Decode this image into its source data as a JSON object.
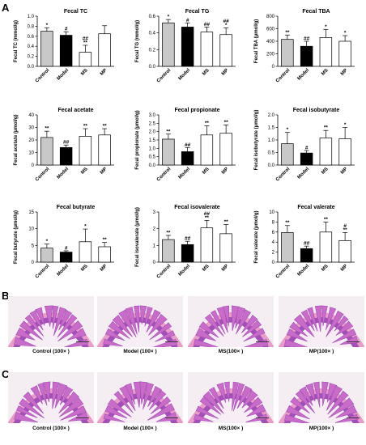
{
  "panel_labels": {
    "a": "A",
    "b": "B",
    "c": "C"
  },
  "chart_data": [
    {
      "type": "bar",
      "title": "Fecal TC",
      "ylabel": "Fecal TC (mmol/g)",
      "categories": [
        "Control",
        "Model",
        "MS",
        "MP"
      ],
      "values": [
        0.7,
        0.62,
        0.28,
        0.65
      ],
      "errors": [
        0.07,
        0.07,
        0.14,
        0.16
      ],
      "ylim": [
        0,
        1.0
      ],
      "yticks": [
        0,
        0.2,
        0.4,
        0.6,
        0.8,
        1.0
      ],
      "tick_labels": [
        "0.0",
        "0.2",
        "0.4",
        "0.6",
        "0.8",
        "1.0"
      ],
      "sig_labels": [
        [
          "*"
        ],
        [
          "#"
        ],
        [
          "##",
          "**"
        ],
        []
      ],
      "colors": [
        "#c8c8c8",
        "#000000",
        "#ffffff",
        "#ffffff"
      ]
    },
    {
      "type": "bar",
      "title": "Fecal TG",
      "ylabel": "Fecal TG (mmol/g)",
      "categories": [
        "Control",
        "Model",
        "MS",
        "MP"
      ],
      "values": [
        0.52,
        0.47,
        0.41,
        0.38
      ],
      "errors": [
        0.04,
        0.05,
        0.06,
        0.08
      ],
      "ylim": [
        0,
        0.6
      ],
      "yticks": [
        0,
        0.2,
        0.4,
        0.6
      ],
      "tick_labels": [
        "0.0",
        "0.2",
        "0.4",
        "0.6"
      ],
      "sig_labels": [
        [
          "*"
        ],
        [
          "#"
        ],
        [
          "##"
        ],
        [
          "##",
          "*"
        ]
      ],
      "colors": [
        "#c8c8c8",
        "#000000",
        "#ffffff",
        "#ffffff"
      ]
    },
    {
      "type": "bar",
      "title": "Fecal TBA",
      "ylabel": "Fecal TBA (μmol/g)",
      "categories": [
        "Control",
        "Model",
        "MS",
        "MP"
      ],
      "values": [
        430,
        320,
        460,
        400
      ],
      "errors": [
        70,
        80,
        130,
        90
      ],
      "ylim": [
        0,
        800
      ],
      "yticks": [
        0,
        200,
        400,
        600,
        800
      ],
      "tick_labels": [
        "0",
        "200",
        "400",
        "600",
        "800"
      ],
      "sig_labels": [
        [
          "**"
        ],
        [
          "##"
        ],
        [
          "*"
        ],
        [
          "*"
        ]
      ],
      "colors": [
        "#c8c8c8",
        "#000000",
        "#ffffff",
        "#ffffff"
      ]
    },
    {
      "type": "bar",
      "title": "Fecal acetate",
      "ylabel": "Fecal acetate (μmol/g)",
      "categories": [
        "Control",
        "Model",
        "MS",
        "MP"
      ],
      "values": [
        22,
        14,
        23,
        24
      ],
      "errors": [
        5,
        2,
        6,
        5
      ],
      "ylim": [
        0,
        40
      ],
      "yticks": [
        0,
        10,
        20,
        30,
        40
      ],
      "tick_labels": [
        "0",
        "10",
        "20",
        "30",
        "40"
      ],
      "sig_labels": [
        [
          "**"
        ],
        [
          "##"
        ],
        [
          "**"
        ],
        [
          "**"
        ]
      ],
      "colors": [
        "#c8c8c8",
        "#000000",
        "#ffffff",
        "#ffffff"
      ]
    },
    {
      "type": "bar",
      "title": "Fecal propionate",
      "ylabel": "Fecal propionate (μmol/g)",
      "categories": [
        "Control",
        "Model",
        "MS",
        "MP"
      ],
      "values": [
        1.55,
        0.8,
        1.8,
        1.9
      ],
      "errors": [
        0.3,
        0.25,
        0.55,
        0.5
      ],
      "ylim": [
        0,
        3.0
      ],
      "yticks": [
        0,
        0.5,
        1.0,
        1.5,
        2.0,
        2.5,
        3.0
      ],
      "tick_labels": [
        "0.0",
        "0.5",
        "1.0",
        "1.5",
        "2.0",
        "2.5",
        "3.0"
      ],
      "sig_labels": [
        [
          "**"
        ],
        [
          "##"
        ],
        [
          "**"
        ],
        [
          "**"
        ]
      ],
      "colors": [
        "#c8c8c8",
        "#000000",
        "#ffffff",
        "#ffffff"
      ]
    },
    {
      "type": "bar",
      "title": "Fecal isobutyrate",
      "ylabel": "Fecal isobutyrate (μmol/g)",
      "categories": [
        "Control",
        "Model",
        "MS",
        "MP"
      ],
      "values": [
        0.85,
        0.48,
        1.08,
        1.05
      ],
      "errors": [
        0.45,
        0.1,
        0.3,
        0.45
      ],
      "ylim": [
        0,
        2.0
      ],
      "yticks": [
        0,
        0.5,
        1.0,
        1.5,
        2.0
      ],
      "tick_labels": [
        "0.0",
        "0.5",
        "1.0",
        "1.5",
        "2.0"
      ],
      "sig_labels": [
        [
          "*"
        ],
        [
          "#"
        ],
        [
          "**"
        ],
        [
          "*"
        ]
      ],
      "colors": [
        "#c8c8c8",
        "#000000",
        "#ffffff",
        "#ffffff"
      ]
    },
    {
      "type": "bar",
      "title": "Fecal butyrate",
      "ylabel": "Fecal butyrate (μmol/g)",
      "categories": [
        "Control",
        "Model",
        "MS",
        "MP"
      ],
      "values": [
        4.2,
        3.0,
        6.1,
        4.6
      ],
      "errors": [
        1.2,
        0.4,
        3.8,
        1.3
      ],
      "ylim": [
        0,
        15
      ],
      "yticks": [
        0,
        5,
        10,
        15
      ],
      "tick_labels": [
        "0",
        "5",
        "10",
        "15"
      ],
      "sig_labels": [
        [
          "*"
        ],
        [
          "#"
        ],
        [
          "*"
        ],
        [
          "**"
        ]
      ],
      "colors": [
        "#c8c8c8",
        "#000000",
        "#ffffff",
        "#ffffff"
      ]
    },
    {
      "type": "bar",
      "title": "Fecal isovalerate",
      "ylabel": "Fecal isovalerate (μmol/g)",
      "categories": [
        "Control",
        "Model",
        "MS",
        "MP"
      ],
      "values": [
        1.35,
        1.05,
        2.05,
        1.7
      ],
      "errors": [
        0.25,
        0.2,
        0.45,
        0.55
      ],
      "ylim": [
        0,
        3
      ],
      "yticks": [
        0,
        1,
        2,
        3
      ],
      "tick_labels": [
        "0",
        "1",
        "2",
        "3"
      ],
      "sig_labels": [
        [
          "**"
        ],
        [
          "##"
        ],
        [
          "##",
          "**"
        ],
        [
          "**"
        ]
      ],
      "colors": [
        "#c8c8c8",
        "#000000",
        "#ffffff",
        "#ffffff"
      ]
    },
    {
      "type": "bar",
      "title": "Fecal valerate",
      "ylabel": "Fecal valerate (μmol/g)",
      "categories": [
        "Control",
        "Model",
        "MS",
        "MP"
      ],
      "values": [
        5.9,
        2.7,
        6.0,
        4.3
      ],
      "errors": [
        1.4,
        0.5,
        2.0,
        1.6
      ],
      "ylim": [
        0,
        10
      ],
      "yticks": [
        0,
        2,
        4,
        6,
        8,
        10
      ],
      "tick_labels": [
        "0",
        "2",
        "4",
        "6",
        "8",
        "10"
      ],
      "sig_labels": [
        [
          "**"
        ],
        [
          "##"
        ],
        [
          "**"
        ],
        [
          "#",
          "**"
        ]
      ],
      "colors": [
        "#c8c8c8",
        "#000000",
        "#ffffff",
        "#ffffff"
      ]
    }
  ],
  "histology": {
    "row_b": [
      "Control (100× )",
      "Model (100× )",
      "MS(100× )",
      "MP(100× )"
    ],
    "row_c": [
      "Control (100× )",
      "Model (100× )",
      "MS(100× )",
      "MP(100× )"
    ]
  },
  "colors": {
    "tissue": "#c96bc9",
    "lumen": "#f6eef4",
    "mucosa": "#a24fb7",
    "muscle": "#e88dc0"
  }
}
